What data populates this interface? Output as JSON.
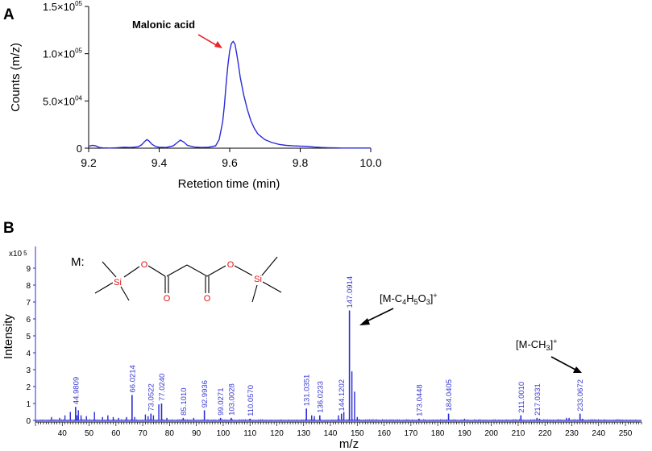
{
  "panels": {
    "a_label": "A",
    "b_label": "B"
  },
  "colors": {
    "trace": "#2b2bd8",
    "arrow_red": "#e8262b",
    "label_blue": "#3a3ad0",
    "molecule_red": "#e01010",
    "black": "#000000"
  },
  "chart_data": [
    {
      "type": "line",
      "panel": "A",
      "xlabel": "Retetion time (min)",
      "ylabel": "Counts (m/z)",
      "xlim": [
        9.2,
        10.0
      ],
      "ylim": [
        0,
        150000
      ],
      "xticks": [
        "9.2",
        "9.4",
        "9.6",
        "9.8",
        "10.0"
      ],
      "yticks": [
        {
          "value": 0,
          "label": "0"
        },
        {
          "value": 50000,
          "label": "5.0×10",
          "exp": "04"
        },
        {
          "value": 100000,
          "label": "1.0×10",
          "exp": "05"
        },
        {
          "value": 150000,
          "label": "1.5×10",
          "exp": "05"
        }
      ],
      "annotation": {
        "text": "Malonic acid",
        "x": 9.61,
        "y": 112000
      },
      "series": [
        {
          "x": [
            9.2,
            9.21,
            9.22,
            9.23,
            9.24,
            9.26,
            9.28,
            9.3,
            9.32,
            9.34,
            9.35,
            9.36,
            9.365,
            9.37,
            9.38,
            9.39,
            9.4,
            9.42,
            9.44,
            9.45,
            9.46,
            9.47,
            9.48,
            9.5,
            9.52,
            9.54,
            9.56,
            9.57,
            9.58,
            9.585,
            9.59,
            9.595,
            9.6,
            9.605,
            9.61,
            9.615,
            9.62,
            9.625,
            9.63,
            9.64,
            9.65,
            9.66,
            9.67,
            9.68,
            9.7,
            9.72,
            9.74,
            9.76,
            9.78,
            9.8,
            9.82,
            9.84,
            9.86,
            9.88,
            9.9,
            9.92,
            9.94,
            9.96,
            9.98,
            10.0
          ],
          "y": [
            2000,
            3000,
            2500,
            800,
            300,
            200,
            500,
            1000,
            800,
            1500,
            3500,
            7500,
            9000,
            8000,
            4000,
            1800,
            1000,
            800,
            2500,
            5500,
            8500,
            6500,
            3000,
            1200,
            800,
            1000,
            2500,
            9000,
            28000,
            45000,
            68000,
            88000,
            103000,
            111000,
            113000,
            110000,
            100000,
            88000,
            75000,
            56000,
            41000,
            29000,
            21000,
            15000,
            9000,
            6000,
            4000,
            3000,
            2500,
            2200,
            2000,
            1200,
            800,
            500,
            300,
            200,
            200,
            200,
            200,
            200
          ]
        }
      ]
    },
    {
      "type": "bar",
      "panel": "B",
      "xlabel": "m/z",
      "ylabel": "Intensity",
      "y_multiplier": "x10",
      "y_multiplier_exp": "5",
      "xlim": [
        30,
        256
      ],
      "ylim": [
        0,
        10
      ],
      "xticks": [
        40,
        50,
        60,
        70,
        80,
        90,
        100,
        110,
        120,
        130,
        140,
        150,
        160,
        170,
        180,
        190,
        200,
        210,
        220,
        230,
        240,
        250
      ],
      "yticks": [
        0,
        1,
        2,
        3,
        4,
        5,
        6,
        7,
        8,
        9
      ],
      "labeled_peaks": [
        {
          "mz": 44.9809,
          "label": "44.9809",
          "intensity": 0.8
        },
        {
          "mz": 66.0214,
          "label": "66.0214",
          "intensity": 1.5
        },
        {
          "mz": 73.0522,
          "label": "73.0522",
          "intensity": 0.4
        },
        {
          "mz": 77.024,
          "label": "77.0240",
          "intensity": 1.0
        },
        {
          "mz": 85.101,
          "label": "85.1010",
          "intensity": 0.15
        },
        {
          "mz": 92.9936,
          "label": "92.9936",
          "intensity": 0.6
        },
        {
          "mz": 99.0271,
          "label": "99.0271",
          "intensity": 0.15
        },
        {
          "mz": 103.0028,
          "label": "103.0028",
          "intensity": 0.15
        },
        {
          "mz": 110.057,
          "label": "110.0570",
          "intensity": 0.1
        },
        {
          "mz": 131.0351,
          "label": "131.0351",
          "intensity": 0.7
        },
        {
          "mz": 136.0233,
          "label": "136.0233",
          "intensity": 0.3
        },
        {
          "mz": 144.1202,
          "label": "144.1202",
          "intensity": 0.4
        },
        {
          "mz": 147.0914,
          "label": "147.0914",
          "intensity": 6.5
        },
        {
          "mz": 173.0448,
          "label": "173.0448",
          "intensity": 0.1
        },
        {
          "mz": 184.0405,
          "label": "184.0405",
          "intensity": 0.4
        },
        {
          "mz": 211.001,
          "label": "211.0010",
          "intensity": 0.3
        },
        {
          "mz": 217.0331,
          "label": "217.0331",
          "intensity": 0.15
        },
        {
          "mz": 233.0672,
          "label": "233.0672",
          "intensity": 0.4
        }
      ],
      "minor_peaks": [
        {
          "mz": 36,
          "intensity": 0.2
        },
        {
          "mz": 39,
          "intensity": 0.15
        },
        {
          "mz": 41,
          "intensity": 0.3
        },
        {
          "mz": 43,
          "intensity": 0.5
        },
        {
          "mz": 45.5,
          "intensity": 0.3
        },
        {
          "mz": 46,
          "intensity": 0.6
        },
        {
          "mz": 47,
          "intensity": 0.3
        },
        {
          "mz": 49,
          "intensity": 0.25
        },
        {
          "mz": 52,
          "intensity": 0.5
        },
        {
          "mz": 55,
          "intensity": 0.2
        },
        {
          "mz": 57,
          "intensity": 0.3
        },
        {
          "mz": 59,
          "intensity": 0.2
        },
        {
          "mz": 61,
          "intensity": 0.15
        },
        {
          "mz": 64,
          "intensity": 0.2
        },
        {
          "mz": 67,
          "intensity": 0.2
        },
        {
          "mz": 71,
          "intensity": 0.35
        },
        {
          "mz": 72,
          "intensity": 0.25
        },
        {
          "mz": 74,
          "intensity": 0.3
        },
        {
          "mz": 76,
          "intensity": 0.95
        },
        {
          "mz": 79,
          "intensity": 0.15
        },
        {
          "mz": 89,
          "intensity": 0.15
        },
        {
          "mz": 133,
          "intensity": 0.3
        },
        {
          "mz": 134,
          "intensity": 0.25
        },
        {
          "mz": 143,
          "intensity": 0.3
        },
        {
          "mz": 145,
          "intensity": 0.5
        },
        {
          "mz": 148,
          "intensity": 2.9
        },
        {
          "mz": 149,
          "intensity": 1.7
        },
        {
          "mz": 150,
          "intensity": 0.2
        },
        {
          "mz": 190,
          "intensity": 0.1
        },
        {
          "mz": 218,
          "intensity": 0.1
        },
        {
          "mz": 228,
          "intensity": 0.15
        },
        {
          "mz": 229,
          "intensity": 0.15
        },
        {
          "mz": 234,
          "intensity": 0.1
        }
      ],
      "annotations": [
        {
          "text": "[M-C",
          "sub1": "4",
          "mid1": "H",
          "sub2": "5",
          "mid2": "O",
          "sub3": "3",
          "end": "]",
          "sup": "+"
        },
        {
          "text": "[M-CH",
          "sub1": "3",
          "end": "]",
          "sup": "+"
        }
      ],
      "molecule": {
        "label": "M:",
        "atoms": [
          "Si",
          "O",
          "O",
          "O",
          "O",
          "Si"
        ]
      }
    }
  ]
}
